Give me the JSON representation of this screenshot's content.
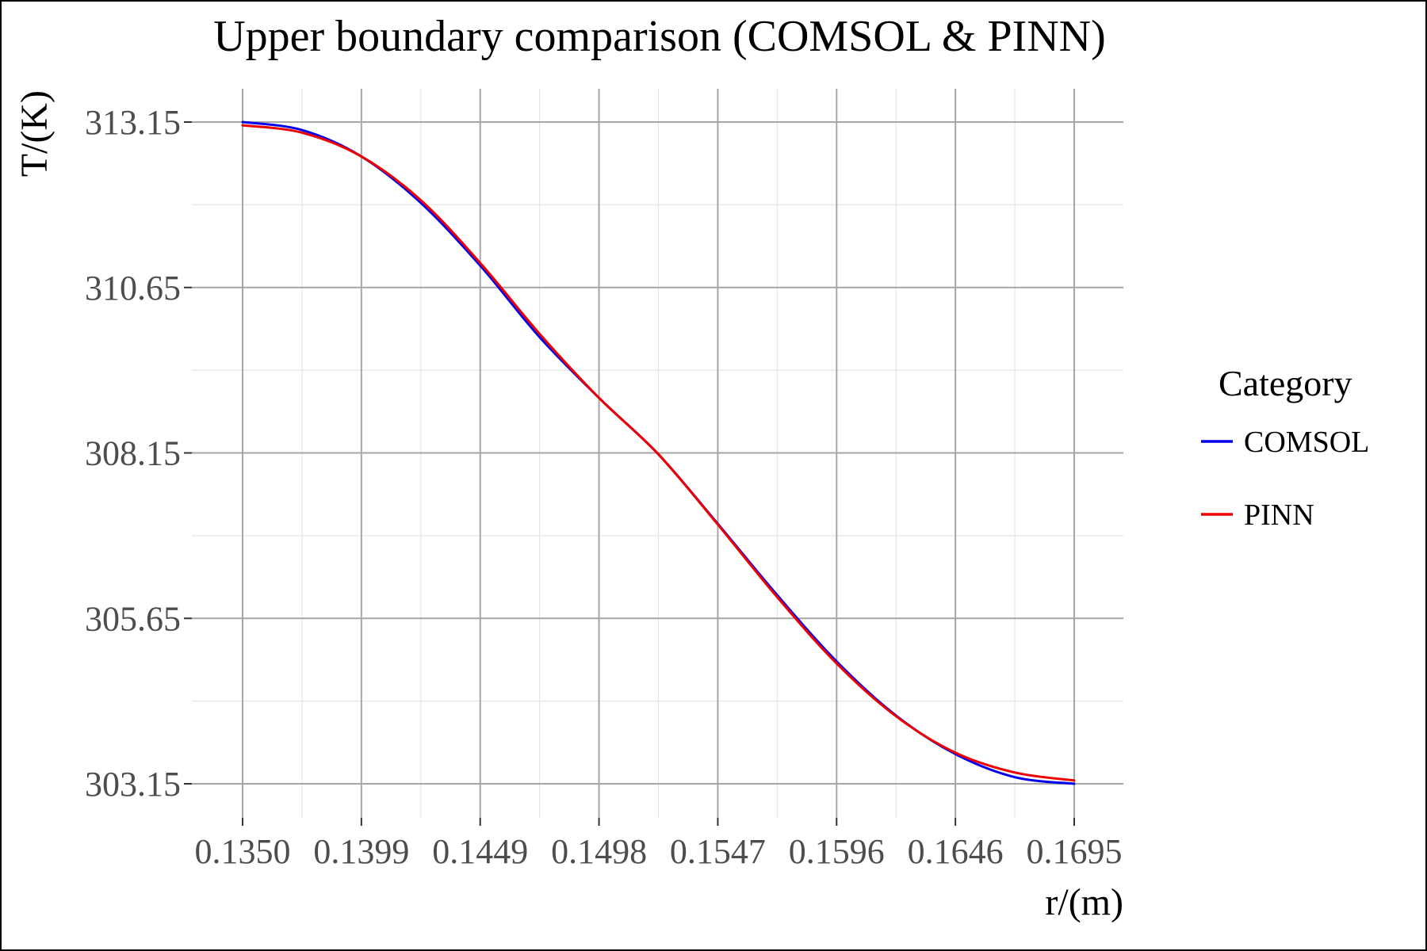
{
  "chart_data": {
    "type": "line",
    "title": "Upper boundary comparison (COMSOL & PINN)",
    "xlabel": "r/(m)",
    "ylabel": "T/(K)",
    "x_ticks": [
      "0.1350",
      "0.1399",
      "0.1449",
      "0.1498",
      "0.1547",
      "0.1596",
      "0.1646",
      "0.1695"
    ],
    "y_ticks": [
      "303.15",
      "305.65",
      "308.15",
      "310.65",
      "313.15"
    ],
    "xlim": [
      0.135,
      0.1695
    ],
    "ylim": [
      302.65,
      313.65
    ],
    "grid": true,
    "legend": {
      "title": "Category",
      "position": "right"
    },
    "x": [
      0.135,
      0.13746,
      0.13993,
      0.14239,
      0.14486,
      0.14732,
      0.14979,
      0.15225,
      0.15471,
      0.15718,
      0.15964,
      0.16211,
      0.16457,
      0.16704,
      0.1695
    ],
    "series": [
      {
        "name": "COMSOL",
        "color": "#0000ee",
        "values": [
          313.15,
          313.03,
          312.63,
          311.93,
          310.98,
          309.9,
          308.98,
          308.13,
          307.08,
          306.0,
          305.0,
          304.18,
          303.6,
          303.25,
          303.15
        ]
      },
      {
        "name": "PINN",
        "color": "#ee0000",
        "values": [
          313.1,
          312.99,
          312.63,
          311.97,
          311.02,
          309.95,
          308.98,
          308.13,
          307.07,
          305.97,
          304.97,
          304.17,
          303.62,
          303.32,
          303.2
        ]
      }
    ]
  }
}
